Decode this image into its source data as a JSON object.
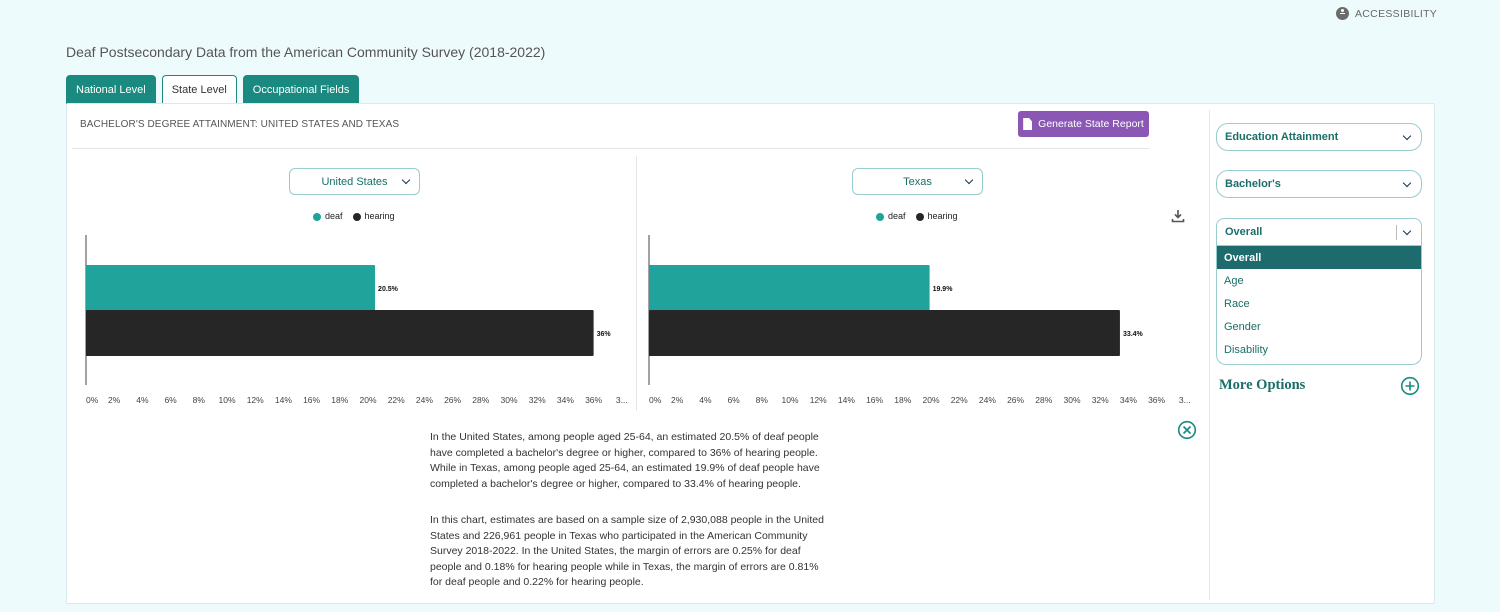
{
  "accessibility_label": "ACCESSIBILITY",
  "page_title": "Deaf Postsecondary Data from the American Community Survey (2018-2022)",
  "tabs": [
    {
      "label": "National Level",
      "active": false
    },
    {
      "label": "State Level",
      "active": true
    },
    {
      "label": "Occupational Fields",
      "active": false
    }
  ],
  "chart_title": "BACHELOR'S DEGREE ATTAINMENT: UNITED STATES AND TEXAS",
  "generate_button": "Generate State Report",
  "legend": {
    "deaf": "deaf",
    "hearing": "hearing"
  },
  "colors": {
    "deaf": "#1fa39a",
    "hearing": "#262626",
    "accent": "#1a8a80",
    "button": "#8a58b4"
  },
  "chart_data": [
    {
      "type": "bar",
      "orientation": "horizontal",
      "title": "United States",
      "categories": [
        "deaf",
        "hearing"
      ],
      "values": [
        20.5,
        36
      ],
      "data_labels": [
        "20.5%",
        "36%"
      ],
      "x_ticks": [
        "0%",
        "2%",
        "4%",
        "6%",
        "8%",
        "10%",
        "12%",
        "14%",
        "16%",
        "18%",
        "20%",
        "22%",
        "24%",
        "26%",
        "28%",
        "30%",
        "32%",
        "34%",
        "36%",
        "3..."
      ],
      "xlim": [
        0,
        38
      ],
      "legend_position": "top",
      "grid": false
    },
    {
      "type": "bar",
      "orientation": "horizontal",
      "title": "Texas",
      "categories": [
        "deaf",
        "hearing"
      ],
      "values": [
        19.9,
        33.4
      ],
      "data_labels": [
        "19.9%",
        "33.4%"
      ],
      "x_ticks": [
        "0%",
        "2%",
        "4%",
        "6%",
        "8%",
        "10%",
        "12%",
        "14%",
        "16%",
        "18%",
        "20%",
        "22%",
        "24%",
        "26%",
        "28%",
        "30%",
        "32%",
        "34%",
        "36%",
        "3..."
      ],
      "xlim": [
        0,
        38
      ],
      "legend_position": "top",
      "grid": false
    }
  ],
  "description": {
    "paragraph1": "In the United States, among people aged 25-64, an estimated 20.5% of deaf people have completed a bachelor's degree or higher, compared to 36% of hearing people. While in Texas, among people aged 25-64, an estimated 19.9% of deaf people have completed a bachelor's degree or higher, compared to 33.4% of hearing people.",
    "paragraph2": "In this chart, estimates are based on a sample size of 2,930,088 people in the United States and 226,961 people in Texas who participated in the American Community Survey 2018-2022. In the United States, the margin of errors are 0.25% for deaf people and 0.18% for hearing people while in Texas, the margin of errors are 0.81% for deaf people and 0.22% for hearing people."
  },
  "sidebar": {
    "topic_select": "Education Attainment",
    "level_select": "Bachelor's",
    "group_select": "Overall",
    "group_options": [
      "Overall",
      "Age",
      "Race",
      "Gender",
      "Disability"
    ],
    "more_options": "More Options"
  },
  "icons": {
    "accessibility": "accessibility-icon",
    "document": "document-icon",
    "download": "download-icon",
    "close": "close-circle-icon",
    "plus": "plus-circle-icon",
    "chevron": "chevron-down-icon"
  }
}
